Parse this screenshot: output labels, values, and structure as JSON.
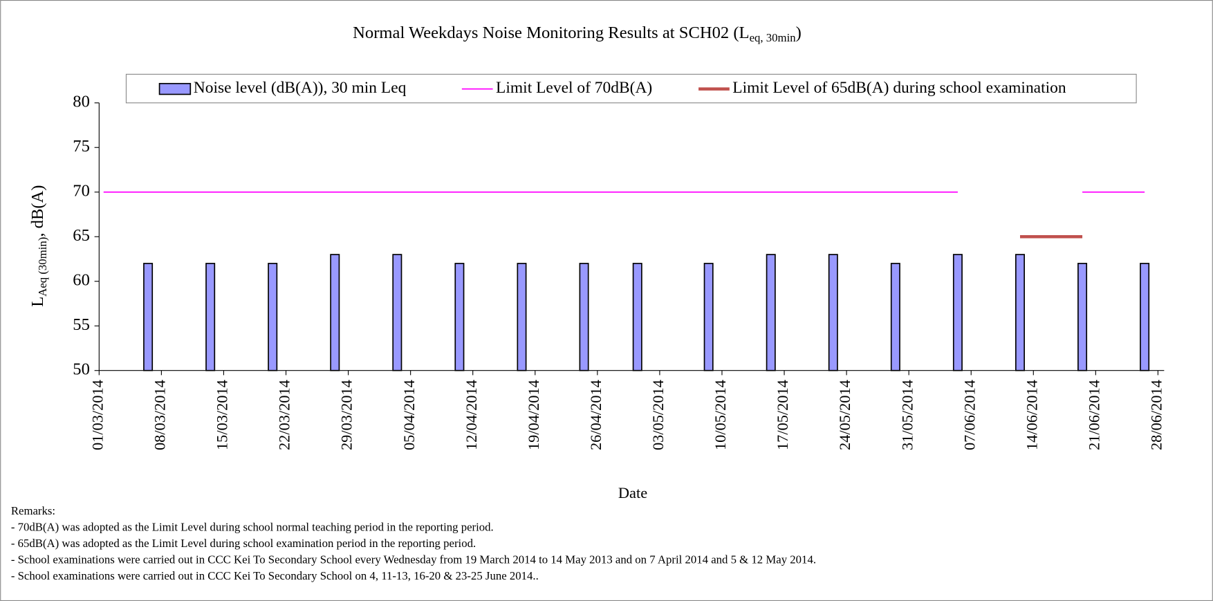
{
  "chart_data": {
    "type": "bar",
    "title": {
      "main": "Normal Weekdays Noise Monitoring Results at SCH02 (L",
      "sub": "eq, 30min",
      "end": ")"
    },
    "y_label": {
      "main": "L",
      "sub": "Aeq (30min)",
      "end": ", dB(A)"
    },
    "x_label": "Date",
    "x": [
      "2014-03-06",
      "2014-03-13",
      "2014-03-20",
      "2014-03-27",
      "2014-04-03",
      "2014-04-10",
      "2014-04-17",
      "2014-04-24",
      "2014-04-30",
      "2014-05-08",
      "2014-05-15",
      "2014-05-22",
      "2014-05-29",
      "2014-06-05",
      "2014-06-12",
      "2014-06-19",
      "2014-06-26"
    ],
    "series": [
      {
        "name": "Noise level (dB(A)), 30 min Leq",
        "color": "#9999ff",
        "type": "bar",
        "values": [
          62,
          62,
          62,
          63,
          63,
          62,
          62,
          62,
          62,
          62,
          63,
          63,
          62,
          63,
          63,
          62,
          62
        ]
      },
      {
        "name": "Limit Level of 70dB(A)",
        "color": "#ff00ff",
        "type": "line",
        "x": [
          "2014-03-01",
          "2014-06-05",
          "2014-06-12",
          "2014-06-19",
          "2014-06-26"
        ],
        "values": [
          70,
          70,
          null,
          70,
          70
        ]
      },
      {
        "name": "Limit Level of 65dB(A) during school examination",
        "color": "#c0504d",
        "type": "line",
        "x": [
          "2014-06-12",
          "2014-06-19"
        ],
        "values": [
          65,
          65
        ]
      }
    ],
    "xlim": [
      "2014-03-01",
      "2014-06-28"
    ],
    "xticks": [
      {
        "value": "2014-03-01",
        "label": "01/03/2014"
      },
      {
        "value": "2014-03-08",
        "label": "08/03/2014"
      },
      {
        "value": "2014-03-15",
        "label": "15/03/2014"
      },
      {
        "value": "2014-03-22",
        "label": "22/03/2014"
      },
      {
        "value": "2014-03-29",
        "label": "29/03/2014"
      },
      {
        "value": "2014-04-05",
        "label": "05/04/2014"
      },
      {
        "value": "2014-04-12",
        "label": "12/04/2014"
      },
      {
        "value": "2014-04-19",
        "label": "19/04/2014"
      },
      {
        "value": "2014-04-26",
        "label": "26/04/2014"
      },
      {
        "value": "2014-05-03",
        "label": "03/05/2014"
      },
      {
        "value": "2014-05-10",
        "label": "10/05/2014"
      },
      {
        "value": "2014-05-17",
        "label": "17/05/2014"
      },
      {
        "value": "2014-05-24",
        "label": "24/05/2014"
      },
      {
        "value": "2014-05-31",
        "label": "31/05/2014"
      },
      {
        "value": "2014-06-07",
        "label": "07/06/2014"
      },
      {
        "value": "2014-06-14",
        "label": "14/06/2014"
      },
      {
        "value": "2014-06-21",
        "label": "21/06/2014"
      },
      {
        "value": "2014-06-28",
        "label": "28/06/2014"
      }
    ],
    "ylim": [
      50,
      80
    ],
    "yticks": [
      50,
      55,
      60,
      65,
      70,
      75,
      80
    ],
    "grid": false,
    "legend": "top",
    "remarks": [
      "Remarks:",
      "- 70dB(A) was adopted as the Limit Level during school normal teaching period  in the reporting period.",
      "- 65dB(A) was adopted as the Limit Level during school examination period in the reporting period.",
      "- School examinations were carried out in CCC Kei To Secondary School every Wednesday from 19 March 2014 to 14 May 2013 and on 7 April 2014 and 5 & 12 May 2014.",
      "- School examinations were carried out in CCC Kei To Secondary School on 4, 11-13, 16-20 & 23-25 June 2014.."
    ]
  }
}
